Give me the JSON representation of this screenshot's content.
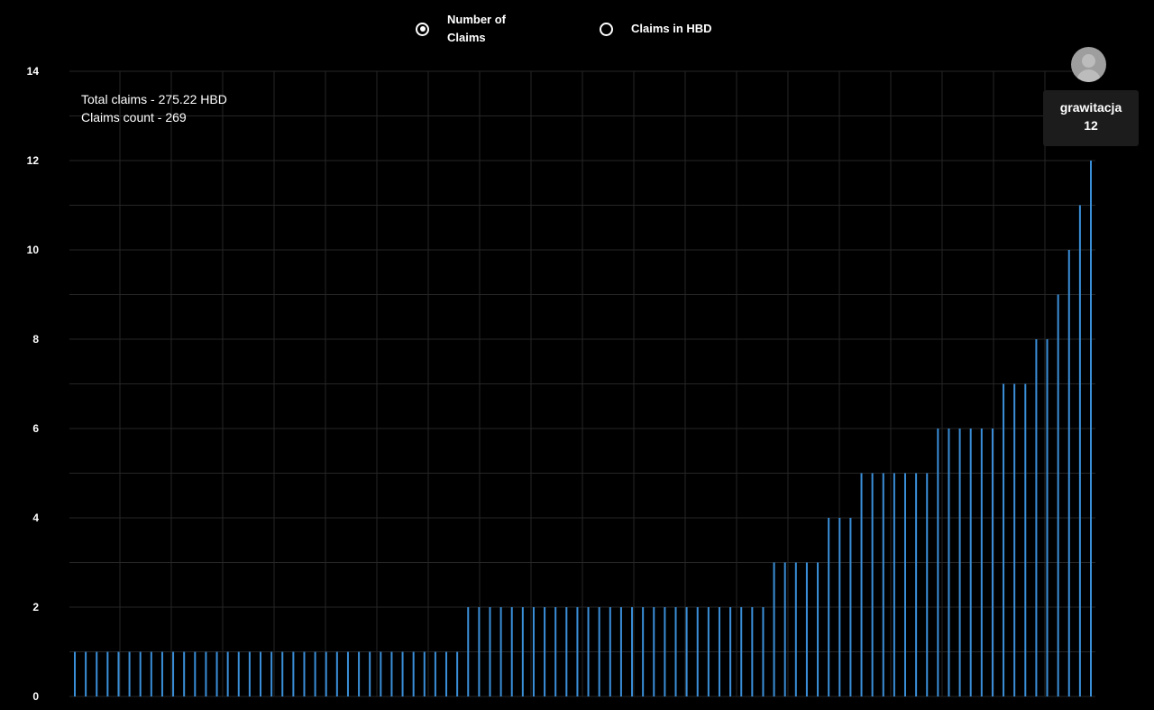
{
  "toggle": {
    "options": [
      {
        "label": "Number of Claims",
        "selected": true
      },
      {
        "label": "Claims in HBD",
        "selected": false
      }
    ]
  },
  "summary": {
    "total_claims": "Total claims - 275.22 HBD",
    "claims_count": "Claims count - 269"
  },
  "tooltip": {
    "name": "grawitacja",
    "value": "12"
  },
  "colors": {
    "background": "#000000",
    "bar": "#3a8fd9",
    "grid": "#262626",
    "text": "#ffffff"
  },
  "chart_data": {
    "type": "bar",
    "ylim": [
      0,
      14
    ],
    "yticks": [
      0,
      2,
      4,
      6,
      8,
      10,
      12,
      14
    ],
    "grid": true,
    "values": [
      1,
      1,
      1,
      1,
      1,
      1,
      1,
      1,
      1,
      1,
      1,
      1,
      1,
      1,
      1,
      1,
      1,
      1,
      1,
      1,
      1,
      1,
      1,
      1,
      1,
      1,
      1,
      1,
      1,
      1,
      1,
      1,
      1,
      1,
      1,
      1,
      2,
      2,
      2,
      2,
      2,
      2,
      2,
      2,
      2,
      2,
      2,
      2,
      2,
      2,
      2,
      2,
      2,
      2,
      2,
      2,
      2,
      2,
      2,
      2,
      2,
      2,
      2,
      2,
      3,
      3,
      3,
      3,
      3,
      4,
      4,
      4,
      5,
      5,
      5,
      5,
      5,
      5,
      5,
      6,
      6,
      6,
      6,
      6,
      6,
      7,
      7,
      7,
      8,
      8,
      9,
      10,
      11,
      12
    ]
  }
}
